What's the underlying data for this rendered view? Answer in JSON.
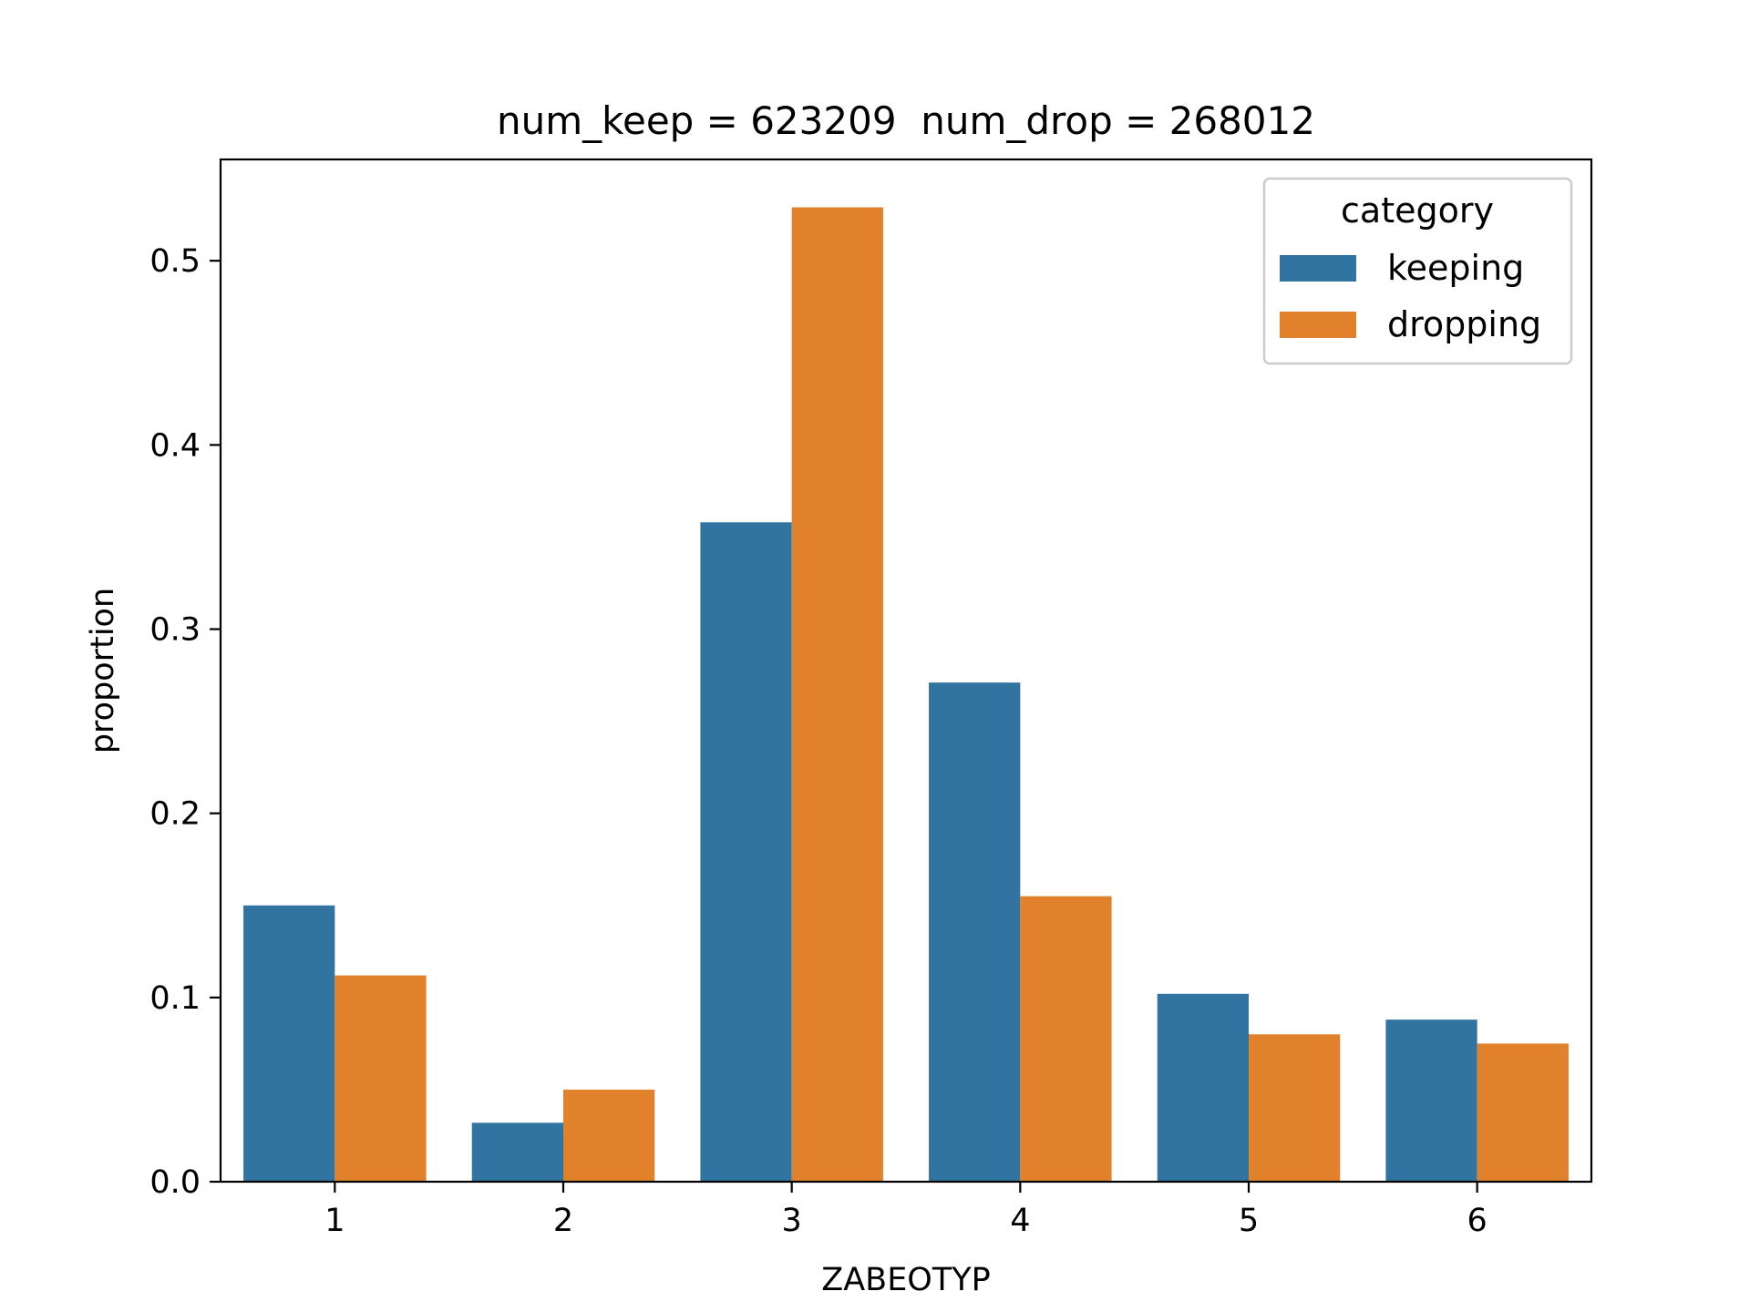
{
  "chart_data": {
    "type": "bar",
    "title": "num_keep = 623209  num_drop = 268012",
    "xlabel": "ZABEOTYP",
    "ylabel": "proportion",
    "categories": [
      "1",
      "2",
      "3",
      "4",
      "5",
      "6"
    ],
    "series": [
      {
        "name": "keeping",
        "color": "#3274a1",
        "values": [
          0.15,
          0.032,
          0.358,
          0.271,
          0.102,
          0.088
        ]
      },
      {
        "name": "dropping",
        "color": "#e1812c",
        "values": [
          0.112,
          0.05,
          0.529,
          0.155,
          0.08,
          0.075
        ]
      }
    ],
    "ylim": [
      0,
      0.555
    ],
    "yticks": [
      "0.0",
      "0.1",
      "0.2",
      "0.3",
      "0.4",
      "0.5"
    ],
    "grid": false,
    "legend": {
      "title": "category",
      "position": "top-right"
    }
  }
}
